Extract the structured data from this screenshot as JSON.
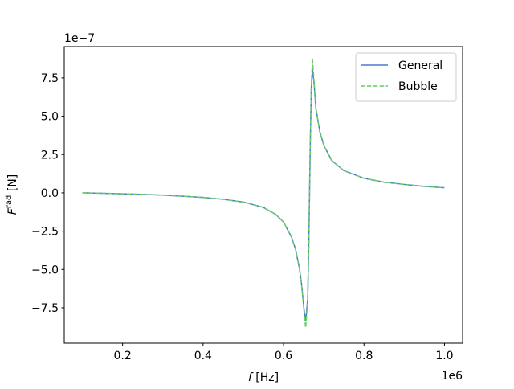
{
  "chart_data": {
    "type": "line",
    "xlabel": {
      "symbol": "f",
      "unit": "[Hz]"
    },
    "ylabel": {
      "symbol": "F",
      "sup": "rad",
      "unit": "[N]"
    },
    "x_offset_label": "1e6",
    "y_offset_label": "1e−7",
    "x": [
      0.1,
      0.15,
      0.2,
      0.25,
      0.3,
      0.35,
      0.4,
      0.45,
      0.5,
      0.55,
      0.58,
      0.6,
      0.62,
      0.63,
      0.64,
      0.645,
      0.65,
      0.655,
      0.66,
      0.663,
      0.666,
      0.669,
      0.672,
      0.676,
      0.68,
      0.69,
      0.7,
      0.72,
      0.75,
      0.8,
      0.85,
      0.9,
      0.95,
      1.0
    ],
    "series": [
      {
        "name": "General",
        "color": "#4878d0",
        "dash": false,
        "values": [
          0,
          -0.03,
          -0.06,
          -0.1,
          -0.15,
          -0.22,
          -0.3,
          -0.42,
          -0.6,
          -0.95,
          -1.4,
          -1.9,
          -2.9,
          -3.7,
          -5.0,
          -6.0,
          -7.4,
          -8.4,
          -6.9,
          -3.0,
          2.5,
          6.9,
          8.1,
          7.1,
          5.6,
          4.0,
          3.1,
          2.1,
          1.45,
          0.95,
          0.7,
          0.55,
          0.42,
          0.33
        ]
      },
      {
        "name": "Bubble",
        "color": "#6acc64",
        "dash": true,
        "values": [
          0,
          -0.03,
          -0.06,
          -0.1,
          -0.15,
          -0.22,
          -0.3,
          -0.42,
          -0.6,
          -0.95,
          -1.4,
          -1.9,
          -2.9,
          -3.7,
          -5.0,
          -6.0,
          -7.5,
          -8.8,
          -7.0,
          -3.0,
          2.5,
          7.0,
          8.7,
          7.2,
          5.6,
          4.0,
          3.1,
          2.1,
          1.45,
          0.95,
          0.7,
          0.55,
          0.42,
          0.33
        ]
      }
    ],
    "xlim": [
      0.055,
      1.045
    ],
    "ylim": [
      -9.81,
      9.54
    ],
    "xticks": [
      0.2,
      0.4,
      0.6,
      0.8,
      {
        "value": 1.0,
        "label": "1.0"
      }
    ],
    "yticks": [
      {
        "value": -7.5,
        "label": "−7.5"
      },
      {
        "value": -5.0,
        "label": "−5.0"
      },
      {
        "value": -2.5,
        "label": "−2.5"
      },
      {
        "value": 0,
        "label": "0.0"
      },
      2.5,
      {
        "value": 5.0,
        "label": "5.0"
      },
      7.5
    ],
    "legend": "upper right"
  }
}
